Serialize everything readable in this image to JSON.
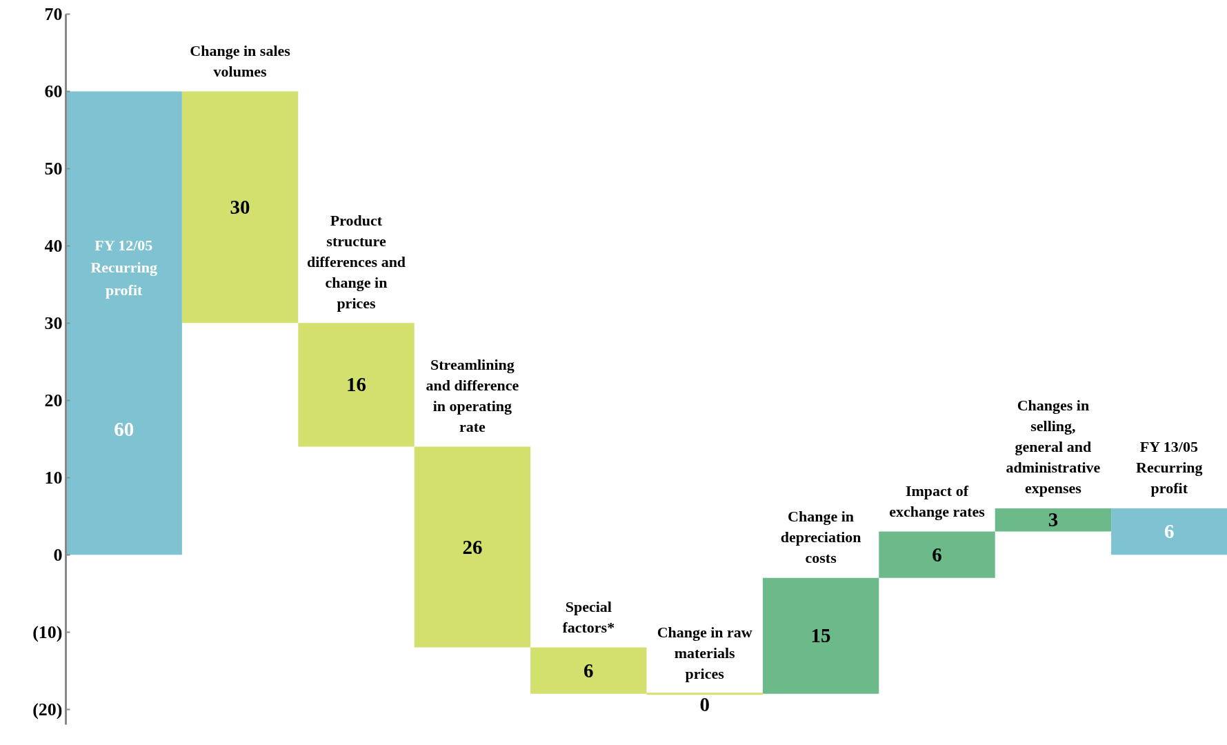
{
  "chart_data": {
    "type": "bar",
    "categories": [
      "FY 12/05 Recurring profit",
      "Change in sales volumes",
      "Product structure differences and change in prices",
      "Streamlining and difference in operating rate",
      "Special factors*",
      "Change in raw materials prices",
      "Change in depreciation costs",
      "Impact of exchange rates",
      "Changes in selling, general and administrative expenses",
      "FY 13/05 Recurring profit"
    ],
    "base": [
      0,
      60,
      30,
      14,
      -12,
      -18,
      -18,
      -3,
      3,
      0
    ],
    "values": [
      60,
      -30,
      -16,
      -26,
      -6,
      0,
      15,
      6,
      3,
      6
    ],
    "value_labels": [
      "60",
      "30",
      "16",
      "26",
      "6",
      "0",
      "15",
      "6",
      "3",
      "6"
    ],
    "colors": [
      "#7fc2d2",
      "#d3e06e",
      "#d3e06e",
      "#d3e06e",
      "#d3e06e",
      "#d3e06e",
      "#6cb98a",
      "#6cb98a",
      "#6cb98a",
      "#7fc2d2"
    ],
    "ylim": [
      -22,
      70
    ],
    "yticks": [
      {
        "value": -20,
        "label": "(20)"
      },
      {
        "value": -10,
        "label": "(10)"
      },
      0,
      10,
      20,
      30,
      40,
      50,
      60,
      70
    ],
    "grid": false,
    "tick_labels": "y"
  }
}
